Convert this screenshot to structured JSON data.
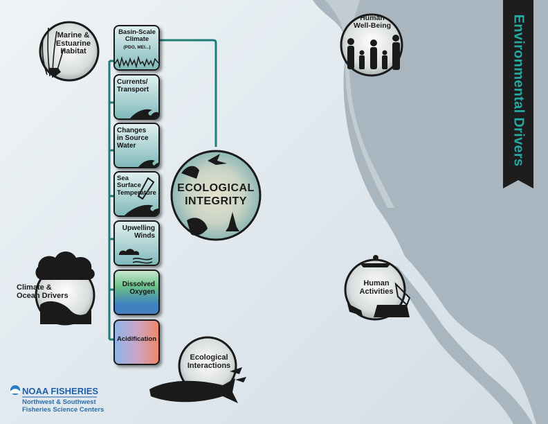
{
  "title": "Environmental Drivers",
  "center": {
    "label": "ECOLOGICAL\nINTEGRITY"
  },
  "hubs": {
    "habitat": "Marine &\nEstuarine\nHabitat",
    "climate": "Climate &\nOcean Drivers",
    "wellbeing": "Human\nWell-Being",
    "activities": "Human\nActivities",
    "interactions": "Ecological\nInteractions"
  },
  "drivers": [
    {
      "label": "Basin-Scale\nClimate",
      "sub": "(PDO, MEI...)"
    },
    {
      "label": "Currents/\nTransport"
    },
    {
      "label": "Changes\nin Source\nWater"
    },
    {
      "label": "Sea\nSurface\nTemperature"
    },
    {
      "label": "Upwelling\nWinds"
    },
    {
      "label": "Dissolved\nOxygen"
    },
    {
      "label": "Acidification"
    }
  ],
  "logo": {
    "brand": "NOAA FISHERIES",
    "sub": "Northwest & Southwest\nFisheries Science Centers"
  },
  "colors": {
    "connector": "#1f7d77",
    "ribbon": "#1d1d1d",
    "ribbon_text": "#27a8a0",
    "coast": "#a9b6bf",
    "noaa_blue": "#1f5ea8"
  }
}
